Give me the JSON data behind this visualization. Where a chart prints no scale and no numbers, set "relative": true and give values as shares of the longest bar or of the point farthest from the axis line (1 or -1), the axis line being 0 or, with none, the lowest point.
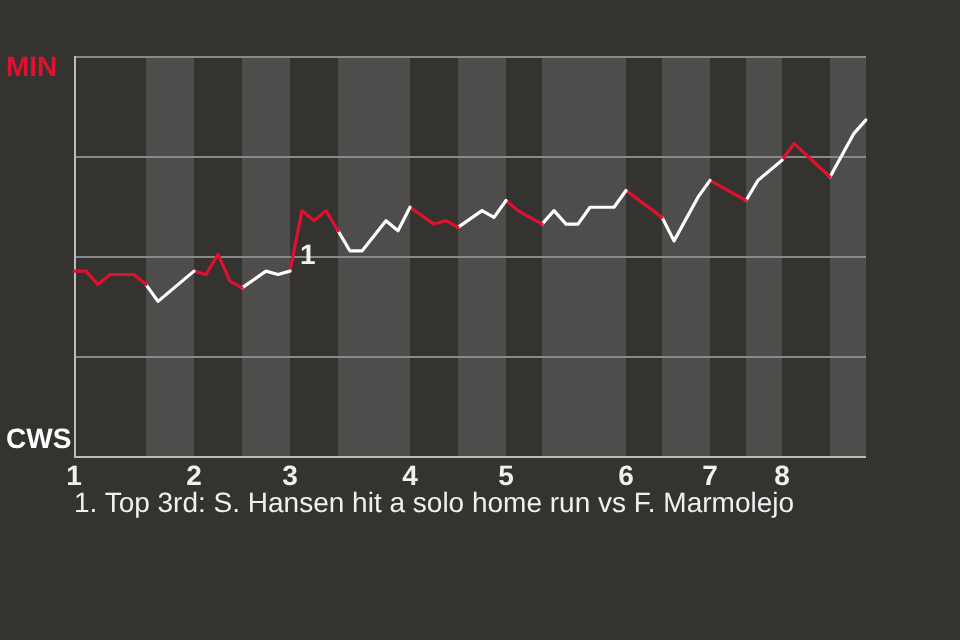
{
  "chart_data": {
    "type": "line",
    "relative": true,
    "categories": [
      "1",
      null,
      null,
      null,
      null,
      null,
      null,
      null,
      null,
      null,
      "2",
      null,
      null,
      null,
      null,
      null,
      null,
      null,
      "3",
      null,
      null,
      null,
      null,
      null,
      null,
      null,
      null,
      null,
      "4",
      null,
      null,
      null,
      null,
      null,
      null,
      null,
      "5",
      null,
      null,
      null,
      null,
      null,
      null,
      null,
      null,
      null,
      "6",
      null,
      null,
      null,
      null,
      null,
      null,
      "7",
      null,
      null,
      null,
      null,
      null,
      "8",
      null,
      null,
      null,
      null,
      null,
      null,
      null
    ],
    "grid": "y",
    "legend": false,
    "marker": "none",
    "line_style": "solid",
    "series": [
      {
        "color": "#e0102f",
        "values": [
          0.55,
          0.55,
          0.51,
          0.54,
          null,
          0.54,
          0.51,
          null,
          null,
          null,
          null,
          null,
          null,
          null,
          null,
          null,
          null,
          null,
          null,
          null,
          null,
          null,
          null,
          null,
          null,
          null,
          null,
          null,
          null,
          null,
          null,
          null,
          null,
          null,
          null,
          null,
          null,
          null,
          null,
          null,
          null,
          null,
          null,
          null,
          null,
          null,
          null,
          null,
          null,
          null,
          null,
          null,
          null,
          null,
          null,
          null,
          null,
          null,
          null,
          null,
          null,
          null,
          null,
          null,
          null,
          null,
          null
        ]
      },
      {
        "color": "#ffffff",
        "values": [
          null,
          null,
          null,
          null,
          null,
          null,
          0.51,
          0.46,
          null,
          null,
          0.55,
          null,
          null,
          null,
          null,
          null,
          null,
          null,
          null,
          null,
          null,
          null,
          null,
          null,
          null,
          null,
          null,
          null,
          null,
          null,
          null,
          null,
          null,
          null,
          null,
          null,
          null,
          null,
          null,
          null,
          null,
          null,
          null,
          null,
          null,
          null,
          null,
          null,
          null,
          null,
          null,
          null,
          null,
          null,
          null,
          null,
          null,
          null,
          null,
          null,
          null,
          null,
          null,
          null,
          null,
          null,
          null
        ]
      },
      {
        "color": "#e0102f",
        "values": [
          null,
          null,
          null,
          null,
          null,
          null,
          null,
          null,
          null,
          null,
          0.55,
          0.54,
          0.6,
          0.52,
          0.5,
          null,
          null,
          null,
          null,
          null,
          null,
          null,
          null,
          null,
          null,
          null,
          null,
          null,
          null,
          null,
          null,
          null,
          null,
          null,
          null,
          null,
          null,
          null,
          null,
          null,
          null,
          null,
          null,
          null,
          null,
          null,
          null,
          null,
          null,
          null,
          null,
          null,
          null,
          null,
          null,
          null,
          null,
          null,
          null,
          null,
          null,
          null,
          null,
          null,
          null,
          null,
          null
        ]
      },
      {
        "color": "#ffffff",
        "values": [
          null,
          null,
          null,
          null,
          null,
          null,
          null,
          null,
          null,
          null,
          null,
          null,
          null,
          null,
          0.5,
          null,
          0.55,
          0.54,
          0.55,
          null,
          null,
          null,
          null,
          null,
          null,
          null,
          null,
          null,
          null,
          null,
          null,
          null,
          null,
          null,
          null,
          null,
          null,
          null,
          null,
          null,
          null,
          null,
          null,
          null,
          null,
          null,
          null,
          null,
          null,
          null,
          null,
          null,
          null,
          null,
          null,
          null,
          null,
          null,
          null,
          null,
          null,
          null,
          null,
          null,
          null,
          null,
          null
        ]
      },
      {
        "color": "#e0102f",
        "values": [
          null,
          null,
          null,
          null,
          null,
          null,
          null,
          null,
          null,
          null,
          null,
          null,
          null,
          null,
          null,
          null,
          null,
          null,
          0.55,
          0.73,
          0.7,
          0.73,
          0.67,
          null,
          null,
          null,
          null,
          null,
          null,
          null,
          null,
          null,
          null,
          null,
          null,
          null,
          null,
          null,
          null,
          null,
          null,
          null,
          null,
          null,
          null,
          null,
          null,
          null,
          null,
          null,
          null,
          null,
          null,
          null,
          null,
          null,
          null,
          null,
          null,
          null,
          null,
          null,
          null,
          null,
          null,
          null,
          null
        ]
      },
      {
        "color": "#ffffff",
        "values": [
          null,
          null,
          null,
          null,
          null,
          null,
          null,
          null,
          null,
          null,
          null,
          null,
          null,
          null,
          null,
          null,
          null,
          null,
          null,
          null,
          null,
          null,
          0.67,
          0.61,
          0.61,
          null,
          0.7,
          0.67,
          0.74,
          null,
          null,
          null,
          null,
          null,
          null,
          null,
          null,
          null,
          null,
          null,
          null,
          null,
          null,
          null,
          null,
          null,
          null,
          null,
          null,
          null,
          null,
          null,
          null,
          null,
          null,
          null,
          null,
          null,
          null,
          null,
          null,
          null,
          null,
          null,
          null,
          null,
          null
        ]
      },
      {
        "color": "#e0102f",
        "values": [
          null,
          null,
          null,
          null,
          null,
          null,
          null,
          null,
          null,
          null,
          null,
          null,
          null,
          null,
          null,
          null,
          null,
          null,
          null,
          null,
          null,
          null,
          null,
          null,
          null,
          null,
          null,
          null,
          0.74,
          null,
          0.69,
          0.7,
          0.68,
          null,
          null,
          null,
          null,
          null,
          null,
          null,
          null,
          null,
          null,
          null,
          null,
          null,
          null,
          null,
          null,
          null,
          null,
          null,
          null,
          null,
          null,
          null,
          null,
          null,
          null,
          null,
          null,
          null,
          null,
          null,
          null,
          null,
          null
        ]
      },
      {
        "color": "#ffffff",
        "values": [
          null,
          null,
          null,
          null,
          null,
          null,
          null,
          null,
          null,
          null,
          null,
          null,
          null,
          null,
          null,
          null,
          null,
          null,
          null,
          null,
          null,
          null,
          null,
          null,
          null,
          null,
          null,
          null,
          null,
          null,
          null,
          null,
          0.68,
          null,
          0.73,
          0.71,
          0.76,
          null,
          null,
          null,
          null,
          null,
          null,
          null,
          null,
          null,
          null,
          null,
          null,
          null,
          null,
          null,
          null,
          null,
          null,
          null,
          null,
          null,
          null,
          null,
          null,
          null,
          null,
          null,
          null,
          null,
          null
        ]
      },
      {
        "color": "#e0102f",
        "values": [
          null,
          null,
          null,
          null,
          null,
          null,
          null,
          null,
          null,
          null,
          null,
          null,
          null,
          null,
          null,
          null,
          null,
          null,
          null,
          null,
          null,
          null,
          null,
          null,
          null,
          null,
          null,
          null,
          null,
          null,
          null,
          null,
          null,
          null,
          null,
          null,
          0.76,
          0.73,
          null,
          0.69,
          null,
          null,
          null,
          null,
          null,
          null,
          null,
          null,
          null,
          null,
          null,
          null,
          null,
          null,
          null,
          null,
          null,
          null,
          null,
          null,
          null,
          null,
          null,
          null,
          null,
          null,
          null
        ]
      },
      {
        "color": "#ffffff",
        "values": [
          null,
          null,
          null,
          null,
          null,
          null,
          null,
          null,
          null,
          null,
          null,
          null,
          null,
          null,
          null,
          null,
          null,
          null,
          null,
          null,
          null,
          null,
          null,
          null,
          null,
          null,
          null,
          null,
          null,
          null,
          null,
          null,
          null,
          null,
          null,
          null,
          null,
          null,
          null,
          0.69,
          0.73,
          0.69,
          0.69,
          0.74,
          null,
          0.74,
          0.79,
          null,
          null,
          null,
          null,
          null,
          null,
          null,
          null,
          null,
          null,
          null,
          null,
          null,
          null,
          null,
          null,
          null,
          null,
          null,
          null
        ]
      },
      {
        "color": "#e0102f",
        "values": [
          null,
          null,
          null,
          null,
          null,
          null,
          null,
          null,
          null,
          null,
          null,
          null,
          null,
          null,
          null,
          null,
          null,
          null,
          null,
          null,
          null,
          null,
          null,
          null,
          null,
          null,
          null,
          null,
          null,
          null,
          null,
          null,
          null,
          null,
          null,
          null,
          null,
          null,
          null,
          null,
          null,
          null,
          null,
          null,
          null,
          null,
          0.79,
          null,
          null,
          0.71,
          null,
          null,
          null,
          null,
          null,
          null,
          null,
          null,
          null,
          null,
          null,
          null,
          null,
          null,
          null,
          null,
          null
        ]
      },
      {
        "color": "#ffffff",
        "values": [
          null,
          null,
          null,
          null,
          null,
          null,
          null,
          null,
          null,
          null,
          null,
          null,
          null,
          null,
          null,
          null,
          null,
          null,
          null,
          null,
          null,
          null,
          null,
          null,
          null,
          null,
          null,
          null,
          null,
          null,
          null,
          null,
          null,
          null,
          null,
          null,
          null,
          null,
          null,
          null,
          null,
          null,
          null,
          null,
          null,
          null,
          null,
          null,
          null,
          0.71,
          0.64,
          null,
          0.77,
          0.82,
          null,
          null,
          null,
          null,
          null,
          null,
          null,
          null,
          null,
          null,
          null,
          null,
          null
        ]
      },
      {
        "color": "#e0102f",
        "values": [
          null,
          null,
          null,
          null,
          null,
          null,
          null,
          null,
          null,
          null,
          null,
          null,
          null,
          null,
          null,
          null,
          null,
          null,
          null,
          null,
          null,
          null,
          null,
          null,
          null,
          null,
          null,
          null,
          null,
          null,
          null,
          null,
          null,
          null,
          null,
          null,
          null,
          null,
          null,
          null,
          null,
          null,
          null,
          null,
          null,
          null,
          null,
          null,
          null,
          null,
          null,
          null,
          null,
          0.82,
          0.8,
          null,
          0.76,
          null,
          null,
          null,
          null,
          null,
          null,
          null,
          null,
          null,
          null
        ]
      },
      {
        "color": "#ffffff",
        "values": [
          null,
          null,
          null,
          null,
          null,
          null,
          null,
          null,
          null,
          null,
          null,
          null,
          null,
          null,
          null,
          null,
          null,
          null,
          null,
          null,
          null,
          null,
          null,
          null,
          null,
          null,
          null,
          null,
          null,
          null,
          null,
          null,
          null,
          null,
          null,
          null,
          null,
          null,
          null,
          null,
          null,
          null,
          null,
          null,
          null,
          null,
          null,
          null,
          null,
          null,
          null,
          null,
          null,
          null,
          null,
          null,
          0.76,
          0.82,
          null,
          0.88,
          null,
          null,
          null,
          null,
          null,
          null,
          null
        ]
      },
      {
        "color": "#e0102f",
        "values": [
          null,
          null,
          null,
          null,
          null,
          null,
          null,
          null,
          null,
          null,
          null,
          null,
          null,
          null,
          null,
          null,
          null,
          null,
          null,
          null,
          null,
          null,
          null,
          null,
          null,
          null,
          null,
          null,
          null,
          null,
          null,
          null,
          null,
          null,
          null,
          null,
          null,
          null,
          null,
          null,
          null,
          null,
          null,
          null,
          null,
          null,
          null,
          null,
          null,
          null,
          null,
          null,
          null,
          null,
          null,
          null,
          null,
          null,
          null,
          0.88,
          0.93,
          null,
          null,
          0.83,
          null,
          null,
          null
        ]
      },
      {
        "color": "#ffffff",
        "values": [
          null,
          null,
          null,
          null,
          null,
          null,
          null,
          null,
          null,
          null,
          null,
          null,
          null,
          null,
          null,
          null,
          null,
          null,
          null,
          null,
          null,
          null,
          null,
          null,
          null,
          null,
          null,
          null,
          null,
          null,
          null,
          null,
          null,
          null,
          null,
          null,
          null,
          null,
          null,
          null,
          null,
          null,
          null,
          null,
          null,
          null,
          null,
          null,
          null,
          null,
          null,
          null,
          null,
          null,
          null,
          null,
          null,
          null,
          null,
          null,
          null,
          null,
          null,
          0.83,
          null,
          0.96,
          1
        ]
      }
    ],
    "annotations": [
      "MIN",
      "CWS",
      "1",
      "1. Top 3rd: S. Hansen hit a solo home run vs F. Marmolejo"
    ]
  }
}
